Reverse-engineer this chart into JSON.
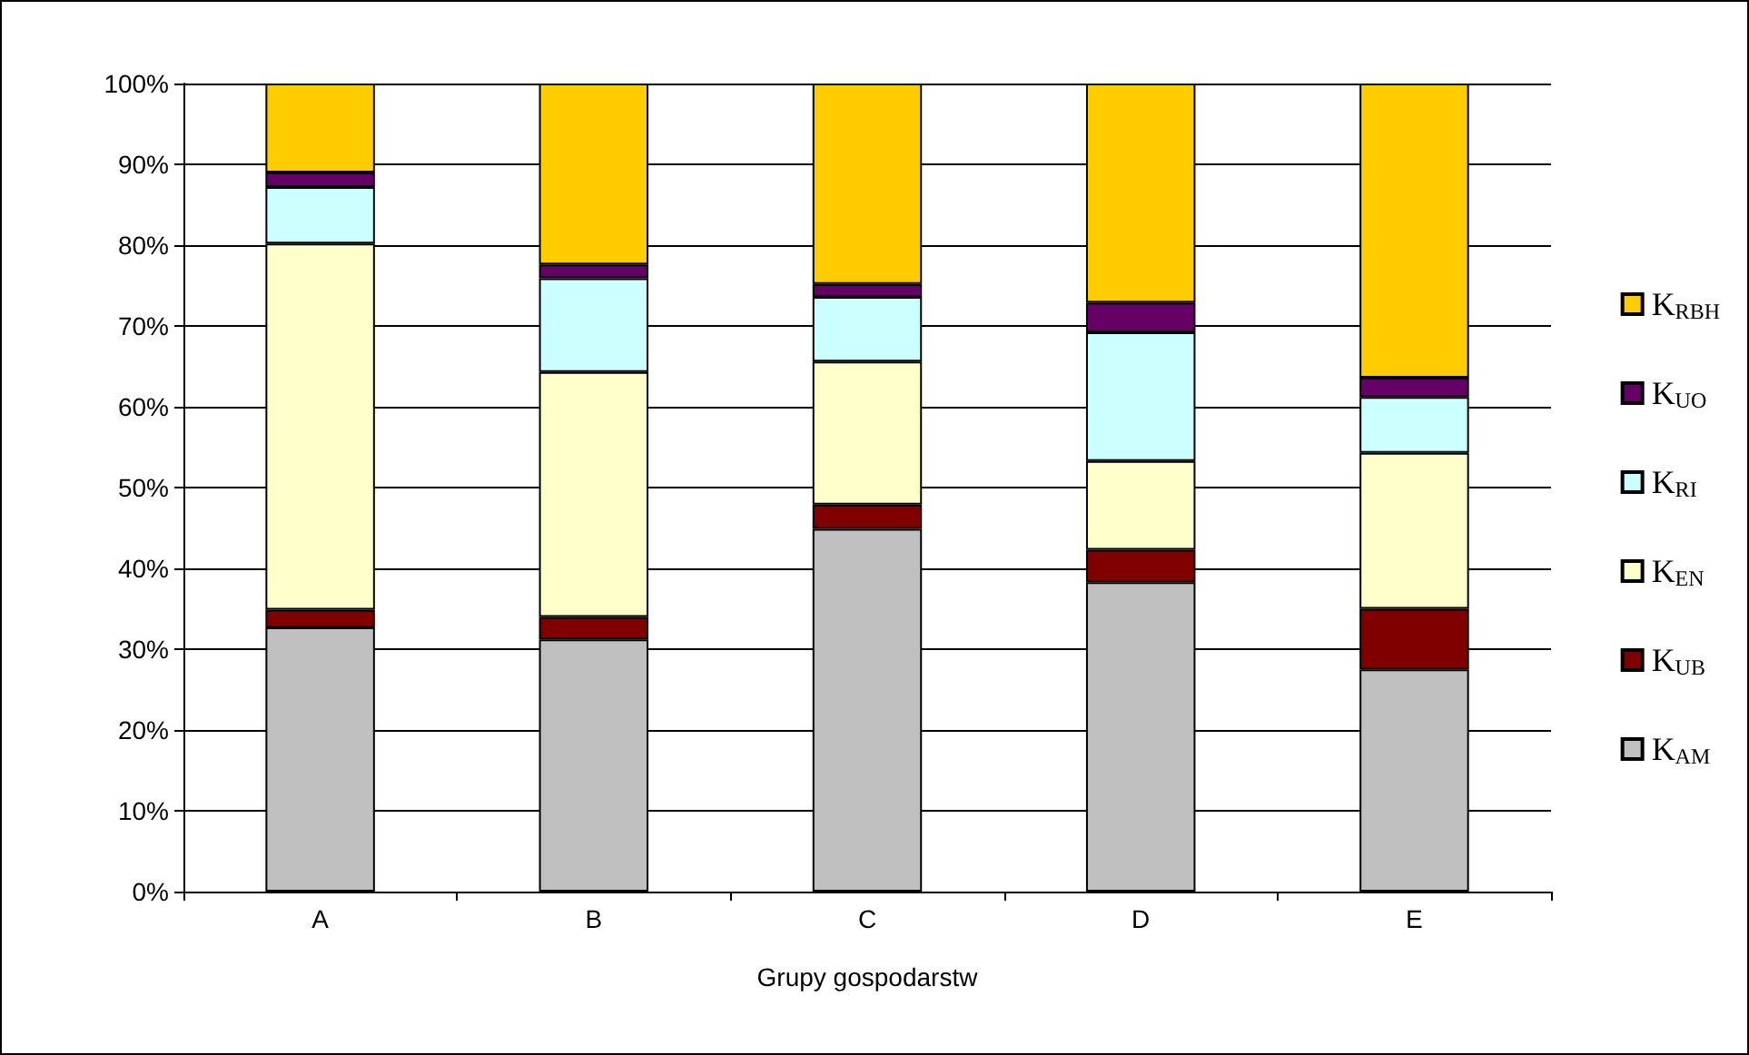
{
  "chart_data": {
    "type": "bar",
    "stacked": true,
    "xlabel": "Grupy gospodarstw",
    "categories": [
      "A",
      "B",
      "C",
      "D",
      "E"
    ],
    "series": [
      {
        "name": "K$_{AM}$",
        "color": "#c0c0c0",
        "values": [
          32.7,
          31.2,
          44.9,
          38.3,
          27.5
        ]
      },
      {
        "name": "K$_{UB}$",
        "color": "#800000",
        "values": [
          2.2,
          2.8,
          3.0,
          4.0,
          7.5
        ]
      },
      {
        "name": "K$_{EN}$",
        "color": "#ffffcc",
        "values": [
          45.3,
          30.3,
          17.7,
          11.0,
          19.3
        ]
      },
      {
        "name": "K$_{RI}$",
        "color": "#ccffff",
        "values": [
          7.0,
          11.6,
          8.0,
          15.9,
          6.9
        ]
      },
      {
        "name": "K$_{UO}$",
        "color": "#660066",
        "values": [
          1.8,
          1.7,
          1.6,
          3.7,
          2.4
        ]
      },
      {
        "name": "K$_{RBH}$",
        "color": "#ffcc00",
        "values": [
          11.0,
          22.4,
          24.8,
          27.1,
          36.4
        ]
      }
    ],
    "ylim": [
      0,
      100
    ],
    "yticks": [
      {
        "value": 0,
        "label": "0%"
      },
      {
        "value": 10,
        "label": "10%"
      },
      {
        "value": 20,
        "label": "20%"
      },
      {
        "value": 30,
        "label": "30%"
      },
      {
        "value": 40,
        "label": "40%"
      },
      {
        "value": 50,
        "label": "50%"
      },
      {
        "value": 60,
        "label": "60%"
      },
      {
        "value": 70,
        "label": "70%"
      },
      {
        "value": 80,
        "label": "80%"
      },
      {
        "value": 90,
        "label": "90%"
      },
      {
        "value": 100,
        "label": "100%"
      }
    ],
    "grid": "y",
    "legend": "right"
  }
}
